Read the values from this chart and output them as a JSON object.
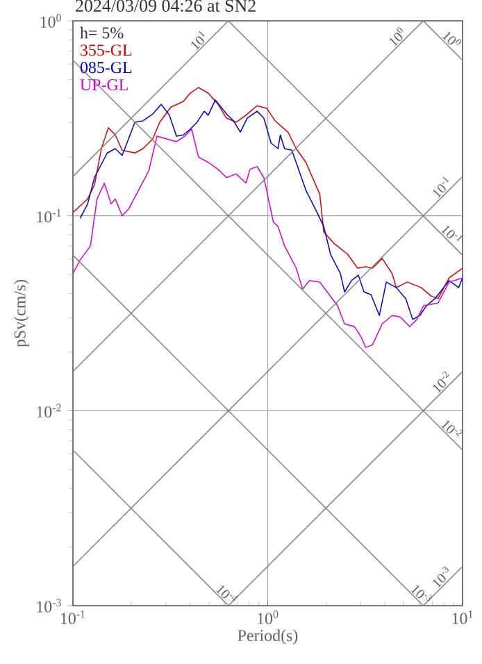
{
  "chart_data": {
    "type": "line",
    "title": "2024/03/09 04:26 at SN2",
    "xlabel": "Period(s)",
    "ylabel": "pSv(cm/s)",
    "log": "xy",
    "grid": true,
    "legend": "top left",
    "xlim": [
      0.1,
      10
    ],
    "ylim": [
      0.001,
      1
    ],
    "xticks": [
      {
        "value": 0.1,
        "label": "10$^{-1}$"
      },
      {
        "value": 1,
        "label": "10$^{0}$"
      },
      {
        "value": 10,
        "label": "10$^{1}$"
      }
    ],
    "yticks": [
      {
        "value": 0.001,
        "label": "10$^{-3}$"
      },
      {
        "value": 0.01,
        "label": "10$^{-2}$"
      },
      {
        "value": 0.1,
        "label": "10$^{-1}$"
      },
      {
        "value": 1,
        "label": "10$^{0}$"
      }
    ],
    "series": [
      {
        "name": "355-GL",
        "color": "#d40000",
        "x": [
          0.1,
          0.119,
          0.129,
          0.14,
          0.152,
          0.165,
          0.179,
          0.208,
          0.229,
          0.257,
          0.279,
          0.318,
          0.369,
          0.4,
          0.441,
          0.495,
          0.556,
          0.614,
          0.689,
          0.773,
          0.881,
          0.989,
          1.09,
          1.27,
          1.4,
          1.57,
          1.85,
          1.94,
          2.18,
          2.57,
          2.89,
          3.18,
          3.45,
          3.87,
          4.35,
          4.57,
          5.21,
          6.14,
          6.89,
          7.48,
          8.53,
          10
        ],
        "values": [
          0.104,
          0.122,
          0.144,
          0.221,
          0.283,
          0.26,
          0.217,
          0.21,
          0.221,
          0.248,
          0.302,
          0.361,
          0.386,
          0.426,
          0.455,
          0.426,
          0.373,
          0.317,
          0.302,
          0.328,
          0.367,
          0.356,
          0.307,
          0.269,
          0.221,
          0.188,
          0.129,
          0.0826,
          0.0724,
          0.0635,
          0.0539,
          0.0548,
          0.0539,
          0.0604,
          0.0505,
          0.0428,
          0.0457,
          0.0428,
          0.0388,
          0.0376,
          0.048,
          0.0539
        ]
      },
      {
        "name": "085-GL",
        "color": "#0000cc",
        "x": [
          0.109,
          0.119,
          0.129,
          0.15,
          0.165,
          0.179,
          0.208,
          0.229,
          0.257,
          0.284,
          0.313,
          0.34,
          0.369,
          0.4,
          0.434,
          0.472,
          0.495,
          0.538,
          0.614,
          0.667,
          0.723,
          0.785,
          0.881,
          0.955,
          1.04,
          1.13,
          1.16,
          1.22,
          1.33,
          1.57,
          1.75,
          1.85,
          1.94,
          2.1,
          2.36,
          2.48,
          2.69,
          2.92,
          3.12,
          3.39,
          3.74,
          4.06,
          4.57,
          5.11,
          5.55,
          6.03,
          6.54,
          7.22,
          8.53,
          9.55,
          10
        ],
        "values": [
          0.0972,
          0.115,
          0.157,
          0.21,
          0.221,
          0.204,
          0.302,
          0.307,
          0.333,
          0.373,
          0.328,
          0.256,
          0.26,
          0.278,
          0.302,
          0.344,
          0.328,
          0.393,
          0.333,
          0.307,
          0.269,
          0.317,
          0.344,
          0.317,
          0.236,
          0.221,
          0.26,
          0.221,
          0.217,
          0.135,
          0.109,
          0.0972,
          0.0881,
          0.0635,
          0.0505,
          0.0407,
          0.0465,
          0.0496,
          0.0407,
          0.0394,
          0.0308,
          0.0457,
          0.0428,
          0.0376,
          0.0294,
          0.0308,
          0.0346,
          0.0376,
          0.0465,
          0.0428,
          0.048
        ]
      },
      {
        "name": "UP-GL",
        "color": "#d400d4",
        "x": [
          0.1,
          0.109,
          0.123,
          0.133,
          0.145,
          0.157,
          0.165,
          0.179,
          0.194,
          0.245,
          0.27,
          0.303,
          0.34,
          0.375,
          0.407,
          0.441,
          0.495,
          0.556,
          0.614,
          0.689,
          0.773,
          0.811,
          0.881,
          0.955,
          1.07,
          1.13,
          1.22,
          1.4,
          1.51,
          1.64,
          1.85,
          2.07,
          2.28,
          2.48,
          2.79,
          3.03,
          3.18,
          3.45,
          3.87,
          4.35,
          4.78,
          5.36,
          5.82,
          6.31,
          7.48,
          8.53,
          10
        ],
        "values": [
          0.0505,
          0.0594,
          0.07,
          0.122,
          0.147,
          0.115,
          0.122,
          0.1,
          0.109,
          0.17,
          0.256,
          0.248,
          0.24,
          0.256,
          0.278,
          0.2,
          0.188,
          0.173,
          0.157,
          0.164,
          0.147,
          0.173,
          0.179,
          0.157,
          0.0926,
          0.0881,
          0.07,
          0.0539,
          0.0421,
          0.0465,
          0.0457,
          0.0394,
          0.0346,
          0.0279,
          0.027,
          0.0237,
          0.0211,
          0.0218,
          0.0279,
          0.0308,
          0.0303,
          0.027,
          0.0294,
          0.0346,
          0.0357,
          0.0457,
          0.048
        ]
      },
      {
        "color": "#808080",
        "x": [
          6.283,
          10
        ],
        "values": [
          1,
          0.628
        ]
      },
      {
        "color": "#808080",
        "x": [
          0.628,
          10
        ],
        "values": [
          1,
          0.0628
        ]
      },
      {
        "color": "#808080",
        "x": [
          0.1,
          10
        ],
        "values": [
          0.628,
          0.00628
        ]
      },
      {
        "color": "#808080",
        "x": [
          0.1,
          6.283
        ],
        "values": [
          0.0628,
          0.001
        ]
      },
      {
        "color": "#808080",
        "x": [
          0.1,
          0.628
        ],
        "values": [
          0.00628,
          0.001
        ]
      },
      {
        "color": "#808080",
        "x": [
          0.1,
          0.628
        ],
        "values": [
          0.159,
          1
        ]
      },
      {
        "color": "#808080",
        "x": [
          0.1,
          6.283
        ],
        "values": [
          0.0159,
          1
        ]
      },
      {
        "color": "#808080",
        "x": [
          0.1,
          10
        ],
        "values": [
          0.00159,
          0.159
        ]
      },
      {
        "color": "#808080",
        "x": [
          0.628,
          10
        ],
        "values": [
          0.001,
          0.0159
        ]
      },
      {
        "color": "#808080",
        "x": [
          6.283,
          10
        ],
        "values": [
          0.001,
          0.00159
        ]
      }
    ],
    "annotations": [
      "h= 5%",
      {
        "text": "10$^{1}$",
        "x": 0.47,
        "y": 0.748
      },
      {
        "text": "10$^{0}$",
        "x": 4.9,
        "y": 0.78
      },
      {
        "text": "10$^{0}$",
        "x": 8.3,
        "y": 0.757
      },
      {
        "text": "10$^{-1}$",
        "x": 8.3,
        "y": 0.132
      },
      {
        "text": "10$^{-1}$",
        "x": 8.3,
        "y": 0.0757
      },
      {
        "text": "10$^{-2}$",
        "x": 8.3,
        "y": 0.0132
      },
      {
        "text": "10$^{-2}$",
        "x": 8.3,
        "y": 0.00757
      },
      {
        "text": "10$^{-3}$",
        "x": 8.3,
        "y": 0.00132
      },
      {
        "text": "10$^{-3}$",
        "x": 5.8,
        "y": 0.00108
      },
      {
        "text": "10$^{-4}$",
        "x": 0.58,
        "y": 0.00108
      }
    ]
  }
}
